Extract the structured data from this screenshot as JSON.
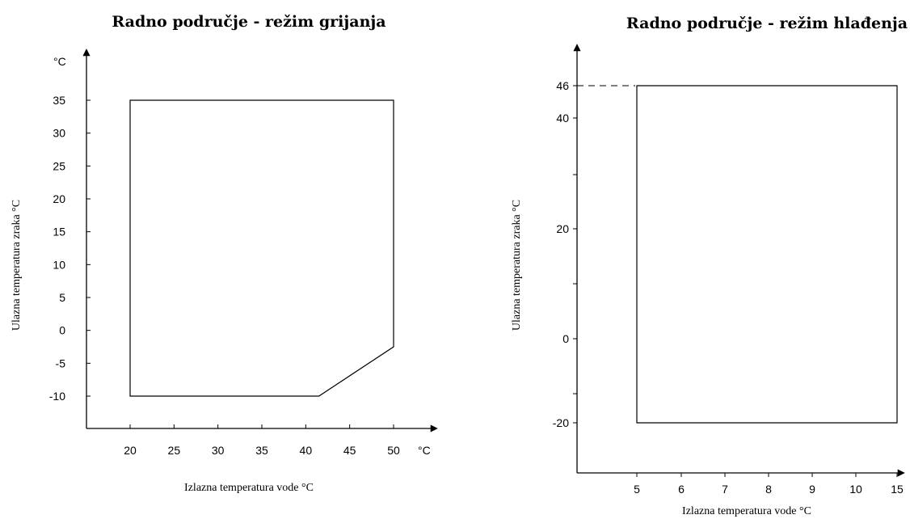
{
  "chart_data": [
    {
      "type": "area",
      "title": "Radno područje - režim grijanja",
      "xlabel": "Izlazna temperatura vode  °C",
      "ylabel": "Ulazna temperatura zraka  °C",
      "x_unit": "°C",
      "y_unit": "°C",
      "x_ticks": [
        "20",
        "25",
        "30",
        "35",
        "40",
        "45",
        "50"
      ],
      "y_ticks": [
        "35",
        "30",
        "25",
        "20",
        "15",
        "10",
        "5",
        "0",
        "-5",
        "-10"
      ],
      "xlim": [
        15,
        55
      ],
      "ylim": [
        -15,
        40
      ],
      "region": [
        [
          20,
          35
        ],
        [
          50,
          35
        ],
        [
          50,
          -2.5
        ],
        [
          41.5,
          -10
        ],
        [
          20,
          -10
        ]
      ],
      "grid": false
    },
    {
      "type": "area",
      "title": "Radno područje - režim hlađenja",
      "xlabel": "Izlazna temperatura vode °C",
      "ylabel": "Ulazna temperatura zraka  °C",
      "x_ticks": [
        "5",
        "6",
        "7",
        "8",
        "9",
        "10",
        "15"
      ],
      "y_ticks": [
        "46",
        "40",
        "20",
        "0",
        "-20"
      ],
      "region": [
        [
          5,
          46
        ],
        [
          15,
          46
        ],
        [
          15,
          -20
        ],
        [
          5,
          -20
        ]
      ],
      "reference_line": {
        "y": 46,
        "label": "46"
      },
      "grid": false
    }
  ]
}
